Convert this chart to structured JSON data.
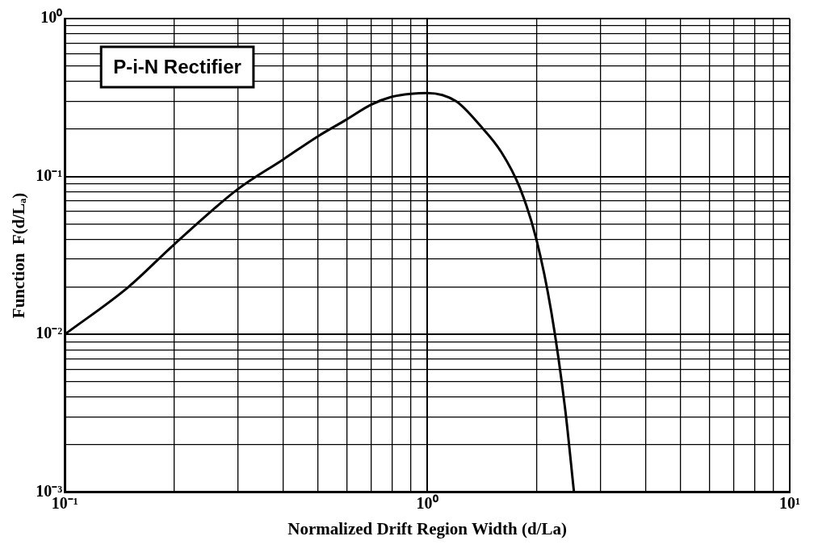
{
  "chart_data": {
    "type": "line",
    "xlabel": "Normalized Drift Region Width (d/La)",
    "ylabel": "Function  F(d/Lₐ)",
    "annotations": [
      "P-i-N Rectifier"
    ],
    "log": "xy",
    "grid": true,
    "legend": false,
    "marker": "none",
    "line_style": "solid",
    "xlim": [
      0.1,
      10
    ],
    "ylim": [
      0.001,
      1
    ],
    "xticks": [
      {
        "value": 0.1,
        "label": "10⁻¹"
      },
      {
        "value": 0.2,
        "label": null
      },
      {
        "value": 0.3,
        "label": null
      },
      {
        "value": 0.4,
        "label": null
      },
      {
        "value": 0.5,
        "label": null
      },
      {
        "value": 0.6,
        "label": null
      },
      {
        "value": 0.7,
        "label": null
      },
      {
        "value": 0.8,
        "label": null
      },
      {
        "value": 0.9,
        "label": null
      },
      {
        "value": 1,
        "label": "10⁰"
      },
      {
        "value": 2,
        "label": null
      },
      {
        "value": 3,
        "label": null
      },
      {
        "value": 4,
        "label": null
      },
      {
        "value": 5,
        "label": null
      },
      {
        "value": 6,
        "label": null
      },
      {
        "value": 7,
        "label": null
      },
      {
        "value": 8,
        "label": null
      },
      {
        "value": 9,
        "label": null
      },
      {
        "value": 10,
        "label": "10¹"
      }
    ],
    "yticks": [
      {
        "value": 0.001,
        "label": "10⁻³"
      },
      {
        "value": 0.002,
        "label": null
      },
      {
        "value": 0.003,
        "label": null
      },
      {
        "value": 0.004,
        "label": null
      },
      {
        "value": 0.005,
        "label": null
      },
      {
        "value": 0.006,
        "label": null
      },
      {
        "value": 0.007,
        "label": null
      },
      {
        "value": 0.008,
        "label": null
      },
      {
        "value": 0.009,
        "label": null
      },
      {
        "value": 0.01,
        "label": "10⁻²"
      },
      {
        "value": 0.02,
        "label": null
      },
      {
        "value": 0.03,
        "label": null
      },
      {
        "value": 0.04,
        "label": null
      },
      {
        "value": 0.05,
        "label": null
      },
      {
        "value": 0.06,
        "label": null
      },
      {
        "value": 0.07,
        "label": null
      },
      {
        "value": 0.08,
        "label": null
      },
      {
        "value": 0.09,
        "label": null
      },
      {
        "value": 0.1,
        "label": "10⁻¹"
      },
      {
        "value": 0.2,
        "label": null
      },
      {
        "value": 0.3,
        "label": null
      },
      {
        "value": 0.4,
        "label": null
      },
      {
        "value": 0.5,
        "label": null
      },
      {
        "value": 0.6,
        "label": null
      },
      {
        "value": 0.7,
        "label": null
      },
      {
        "value": 0.8,
        "label": null
      },
      {
        "value": 0.9,
        "label": null
      },
      {
        "value": 1,
        "label": "10⁰"
      }
    ],
    "series": [
      {
        "color": "#000000",
        "x": [
          0.1,
          0.15,
          0.2,
          0.3,
          0.4,
          0.5,
          0.6,
          0.7,
          0.8,
          0.9,
          1.0,
          1.2,
          1.4,
          1.6,
          1.8,
          2.0,
          2.2,
          2.4,
          2.54
        ],
        "values": [
          0.01,
          0.02,
          0.037,
          0.083,
          0.128,
          0.18,
          0.23,
          0.285,
          0.32,
          0.334,
          0.338,
          0.3,
          0.21,
          0.143,
          0.085,
          0.04,
          0.0138,
          0.0034,
          0.001
        ]
      }
    ]
  }
}
